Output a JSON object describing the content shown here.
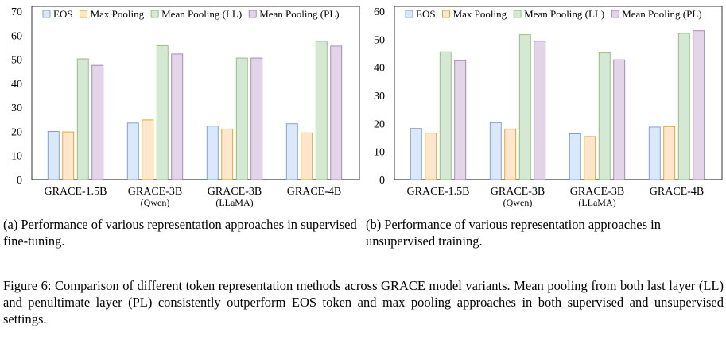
{
  "chart_data": [
    {
      "type": "bar",
      "ylim": [
        0,
        70
      ],
      "yticks": [
        0,
        10,
        20,
        30,
        40,
        50,
        60,
        70
      ],
      "legend_position": "top",
      "grid": false,
      "categories": [
        {
          "line1": "GRACE-1.5B",
          "line2": ""
        },
        {
          "line1": "GRACE-3B",
          "line2": "(Qwen)"
        },
        {
          "line1": "GRACE-3B",
          "line2": "(LLaMA)"
        },
        {
          "line1": "GRACE-4B",
          "line2": ""
        }
      ],
      "series": [
        {
          "name": "EOS",
          "fill": "#dae8fc",
          "stroke": "#6c8ebf",
          "values": [
            20.0,
            23.5,
            22.2,
            23.2
          ]
        },
        {
          "name": "Max Pooling",
          "fill": "#ffe6cc",
          "stroke": "#d79b00",
          "values": [
            19.8,
            24.8,
            21.0,
            19.4
          ]
        },
        {
          "name": "Mean Pooling (LL)",
          "fill": "#d5e8d4",
          "stroke": "#82b366",
          "values": [
            50.2,
            55.6,
            50.5,
            57.5
          ]
        },
        {
          "name": "Mean Pooling (PL)",
          "fill": "#e1d5e7",
          "stroke": "#9673a6",
          "values": [
            47.5,
            52.2,
            50.5,
            55.5
          ]
        }
      ]
    },
    {
      "type": "bar",
      "ylim": [
        0,
        60
      ],
      "yticks": [
        0,
        10,
        20,
        30,
        40,
        50,
        60
      ],
      "legend_position": "top",
      "grid": false,
      "categories": [
        {
          "line1": "GRACE-1.5B",
          "line2": ""
        },
        {
          "line1": "GRACE-3B",
          "line2": "(Qwen)"
        },
        {
          "line1": "GRACE-3B",
          "line2": "(LLaMA)"
        },
        {
          "line1": "GRACE-4B",
          "line2": ""
        }
      ],
      "series": [
        {
          "name": "EOS",
          "fill": "#dae8fc",
          "stroke": "#6c8ebf",
          "values": [
            18.2,
            20.3,
            16.3,
            18.7
          ]
        },
        {
          "name": "Max Pooling",
          "fill": "#ffe6cc",
          "stroke": "#d79b00",
          "values": [
            16.5,
            17.9,
            15.3,
            18.9
          ]
        },
        {
          "name": "Mean Pooling (LL)",
          "fill": "#d5e8d4",
          "stroke": "#82b366",
          "values": [
            45.5,
            51.6,
            45.2,
            52.1
          ]
        },
        {
          "name": "Mean Pooling (PL)",
          "fill": "#e1d5e7",
          "stroke": "#9673a6",
          "values": [
            42.4,
            49.3,
            42.7,
            53.0
          ]
        }
      ]
    }
  ],
  "captions": {
    "left_label": "(a)",
    "left_text": "Performance of various representation approaches in supervised fine-tuning.",
    "right_label": "(b)",
    "right_text": "Performance of various representation approaches in unsupervised training.",
    "figure": "Figure 6: Comparison of different token representation methods across GRACE model variants. Mean pooling from both last layer (LL) and penultimate layer (PL) consistently outperform EOS token and max pooling approaches in both supervised and unsupervised settings."
  }
}
